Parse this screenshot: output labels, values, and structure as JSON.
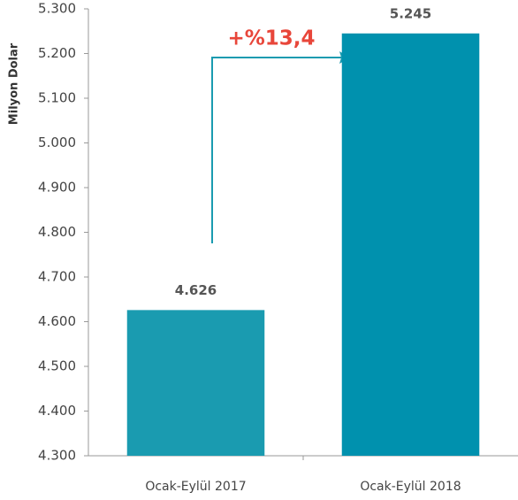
{
  "chart_data": {
    "type": "bar",
    "y_axis_label": "Milyon Dolar",
    "annotation": "+%13,4",
    "categories": [
      "Ocak-Eylül 2017",
      "Ocak-Eylül 2018"
    ],
    "values": [
      4626,
      5245
    ],
    "value_labels": [
      "4.626",
      "5.245"
    ],
    "colors": [
      "#1a9bb0",
      "#0091ae"
    ],
    "ylim": [
      4300,
      5300
    ],
    "yticks": [
      {
        "value": 4300,
        "label": "4.300"
      },
      {
        "value": 4400,
        "label": "4.400"
      },
      {
        "value": 4500,
        "label": "4.500"
      },
      {
        "value": 4600,
        "label": "4.600"
      },
      {
        "value": 4700,
        "label": "4.700"
      },
      {
        "value": 4800,
        "label": "4.800"
      },
      {
        "value": 4900,
        "label": "4.900"
      },
      {
        "value": 5000,
        "label": "5.000"
      },
      {
        "value": 5100,
        "label": "5.100"
      },
      {
        "value": 5200,
        "label": "5.200"
      },
      {
        "value": 5300,
        "label": "5.300"
      }
    ],
    "grid": false
  }
}
